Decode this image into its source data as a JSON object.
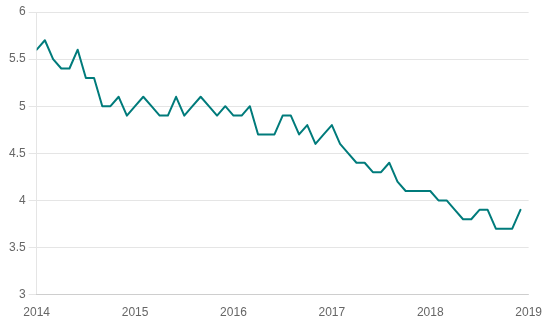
{
  "chart_data": {
    "type": "line",
    "x": [
      2014.0,
      2014.0833,
      2014.1667,
      2014.25,
      2014.3333,
      2014.4167,
      2014.5,
      2014.5833,
      2014.6667,
      2014.75,
      2014.8333,
      2014.9167,
      2015.0,
      2015.0833,
      2015.1667,
      2015.25,
      2015.3333,
      2015.4167,
      2015.5,
      2015.5833,
      2015.6667,
      2015.75,
      2015.8333,
      2015.9167,
      2016.0,
      2016.0833,
      2016.1667,
      2016.25,
      2016.3333,
      2016.4167,
      2016.5,
      2016.5833,
      2016.6667,
      2016.75,
      2016.8333,
      2016.9167,
      2017.0,
      2017.0833,
      2017.1667,
      2017.25,
      2017.3333,
      2017.4167,
      2017.5,
      2017.5833,
      2017.6667,
      2017.75,
      2017.8333,
      2017.9167,
      2018.0,
      2018.0833,
      2018.1667,
      2018.25,
      2018.3333,
      2018.4167,
      2018.5,
      2018.5833,
      2018.6667,
      2018.75,
      2018.8333,
      2018.9167
    ],
    "values": [
      5.6,
      5.7,
      5.5,
      5.4,
      5.4,
      5.6,
      5.3,
      5.3,
      5.0,
      5.0,
      5.1,
      4.9,
      5.0,
      5.1,
      5.0,
      4.9,
      4.9,
      5.1,
      4.9,
      5.0,
      5.1,
      5.0,
      4.9,
      5.0,
      4.9,
      4.9,
      5.0,
      4.7,
      4.7,
      4.7,
      4.9,
      4.9,
      4.7,
      4.8,
      4.6,
      4.7,
      4.8,
      4.6,
      4.5,
      4.4,
      4.4,
      4.3,
      4.3,
      4.4,
      4.2,
      4.1,
      4.1,
      4.1,
      4.1,
      4.0,
      4.0,
      3.9,
      3.8,
      3.8,
      3.9,
      3.9,
      3.7,
      3.7,
      3.7,
      3.9
    ],
    "color": "#007b7b",
    "xlim": [
      2014,
      2019
    ],
    "xticks": [
      2014,
      2015,
      2016,
      2017,
      2018,
      2019
    ],
    "ylim": [
      3,
      6
    ],
    "yticks": [
      3,
      3.5,
      4,
      4.5,
      5,
      5.5,
      6
    ],
    "grid": "y"
  }
}
